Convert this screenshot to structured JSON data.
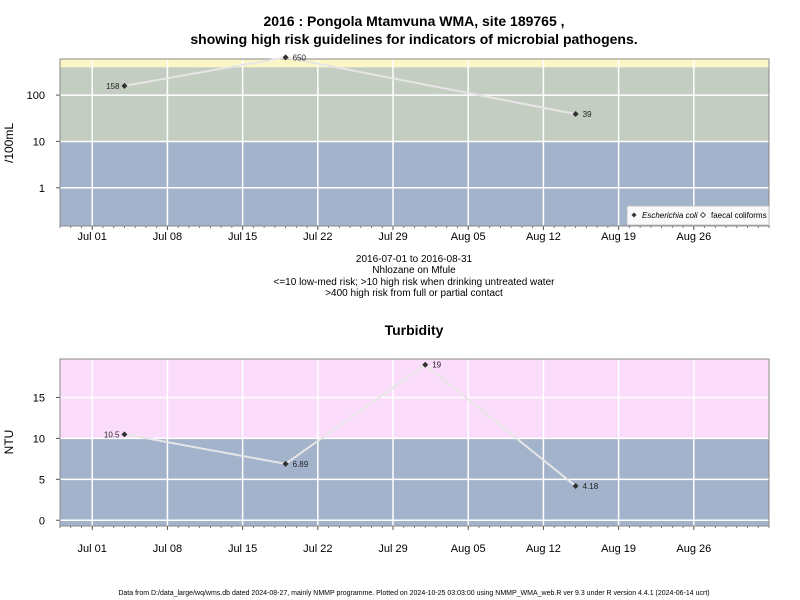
{
  "colors": {
    "background": "#ffffff",
    "low_band": "#a3b3cc",
    "mid_band": "#c4cdc1",
    "high_band_ecoli": "#fcf6c6",
    "high_band_turbidity": "#fbddfb",
    "grid": "#ffffff",
    "line": "#e6e6e6",
    "marker": "#303030",
    "axis": "#555555"
  },
  "x_ticks": [
    "Jul 01",
    "Jul 08",
    "Jul 15",
    "Jul 22",
    "Jul 29",
    "Aug 05",
    "Aug 12",
    "Aug 19",
    "Aug 26"
  ],
  "top_panel": {
    "title_line1": "2016 : Pongola Mtamvuna WMA, site 189765 ,",
    "title_line2": "showing high risk guidelines for indicators of microbial pathogens.",
    "ylabel": "/100mL",
    "y_ticks": [
      "1",
      "10",
      "100"
    ],
    "sub_lines": [
      "2016-07-01 to 2016-08-31",
      "Nhlozane on Mfule",
      "<=10 low-med risk; >10 high risk when drinking untreated water",
      ">400 high risk from full or partial contact"
    ],
    "legend": {
      "ecoli": "Escherichia coli",
      "faecal": "faecal coliforms"
    }
  },
  "bottom_panel": {
    "title": "Turbidity",
    "ylabel": "NTU",
    "y_ticks": [
      "0",
      "5",
      "10",
      "15"
    ]
  },
  "footer": "Data from D:/data_large/wq/wms.db dated 2024-08-27, mainly NMMP programme. Plotted on 2024-10-25 03:03:00 using NMMP_WMA_web.R ver 9.3 under R version 4.4.1 (2024-06-14 ucrt)",
  "chart_data": [
    {
      "type": "line",
      "title": "2016 : Pongola Mtamvuna WMA, site 189765 , showing high risk guidelines for indicators of microbial pathogens.",
      "xlabel": "",
      "ylabel": "/100mL",
      "y_scale": "log10",
      "x_range": [
        "2016-06-28",
        "2016-09-02"
      ],
      "ylim": [
        0.15,
        600
      ],
      "grid": true,
      "legend_position": "bottom-right",
      "bands": [
        {
          "from": 0.15,
          "to": 10,
          "color": "#a3b3cc"
        },
        {
          "from": 10,
          "to": 400,
          "color": "#c4cdc1"
        },
        {
          "from": 400,
          "to": 600,
          "color": "#fcf6c6"
        }
      ],
      "series": [
        {
          "name": "Escherichia coli",
          "x": [
            "2016-07-04",
            "2016-07-19",
            "2016-08-15"
          ],
          "y": [
            158,
            650,
            39
          ],
          "labels": [
            "158",
            "650",
            "39"
          ]
        }
      ]
    },
    {
      "type": "line",
      "title": "Turbidity",
      "xlabel": "",
      "ylabel": "NTU",
      "y_scale": "linear",
      "x_range": [
        "2016-06-28",
        "2016-09-02"
      ],
      "ylim": [
        -0.7,
        19.7
      ],
      "grid": true,
      "bands": [
        {
          "from": -0.7,
          "to": 10,
          "color": "#a3b3cc"
        },
        {
          "from": 10,
          "to": 19.7,
          "color": "#fbddfb"
        }
      ],
      "series": [
        {
          "x": [
            "2016-07-04",
            "2016-07-19",
            "2016-08-01",
            "2016-08-15"
          ],
          "y": [
            10.5,
            6.89,
            19,
            4.18
          ],
          "labels": [
            "10.5",
            "6.89",
            "19",
            "4.18"
          ]
        }
      ]
    }
  ]
}
